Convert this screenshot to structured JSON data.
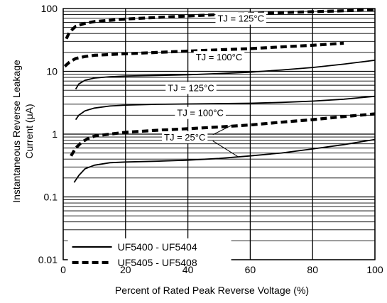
{
  "chart_data": {
    "type": "line",
    "title": "",
    "xlabel": "Percent of Rated Peak Reverse Voltage (%)",
    "ylabel": "Instantaneous Reverse Leakage Current (μA)",
    "ylabel_lines": [
      "Instantaneous Reverse Leakage",
      "Current (μA)"
    ],
    "x_scale": "linear",
    "y_scale": "log",
    "xlim": [
      0,
      100
    ],
    "ylim": [
      0.01,
      100
    ],
    "x_ticks": [
      0,
      20,
      40,
      60,
      80,
      100
    ],
    "x_tick_labels": [
      "0",
      "20",
      "40",
      "60",
      "80",
      "100"
    ],
    "y_ticks": [
      0.01,
      0.1,
      1,
      10,
      100
    ],
    "y_tick_labels": [
      "0.01",
      "0.1",
      "1",
      "10",
      "100"
    ],
    "grid": true,
    "legend": {
      "placement": "bottom-left",
      "entries": [
        {
          "label": "UF5400 - UF5404",
          "style": "solid"
        },
        {
          "label": "UF5405 - UF5408",
          "style": "dashed"
        }
      ]
    },
    "annotations": [
      {
        "text": "TJ = 125°C",
        "series": "dashed-125",
        "x": 57,
        "y": 70
      },
      {
        "text": "TJ = 100°C",
        "series": "dashed-100",
        "x": 50,
        "y": 17
      },
      {
        "text": "TJ = 125°C",
        "series": "solid-125",
        "x": 41,
        "y": 5.5
      },
      {
        "text": "TJ = 100°C",
        "series": "solid-100",
        "x": 44,
        "y": 2.2
      },
      {
        "text": "TJ = 25°C",
        "series": "solid-25",
        "x": 39,
        "y": 0.9
      }
    ],
    "series": [
      {
        "id": "dashed-125",
        "style": "dashed",
        "x": [
          1,
          2,
          4,
          7,
          10,
          15,
          20,
          30,
          40,
          50,
          60,
          70,
          80,
          90,
          100
        ],
        "y": [
          33,
          42,
          52,
          58,
          62,
          65,
          68,
          72,
          76,
          80,
          83,
          86,
          89,
          92,
          95
        ]
      },
      {
        "id": "dashed-100",
        "style": "dashed",
        "x": [
          0.5,
          2,
          4,
          7,
          10,
          15,
          20,
          30,
          40,
          50,
          60,
          70,
          80,
          90
        ],
        "y": [
          12,
          14,
          16,
          17.2,
          18,
          18.5,
          19,
          20,
          21,
          22,
          23,
          24.5,
          26,
          28
        ]
      },
      {
        "id": "solid-125",
        "style": "solid",
        "x": [
          4,
          5,
          7,
          10,
          15,
          20,
          30,
          40,
          50,
          60,
          70,
          80,
          90,
          100
        ],
        "y": [
          5.2,
          6.3,
          7.2,
          7.8,
          8.2,
          8.4,
          8.6,
          8.8,
          9.2,
          9.7,
          10.5,
          11.5,
          13,
          15
        ]
      },
      {
        "id": "solid-100",
        "style": "solid",
        "x": [
          4,
          5,
          7,
          10,
          15,
          20,
          30,
          40,
          50,
          60,
          70,
          80,
          90,
          100
        ],
        "y": [
          1.7,
          2.0,
          2.35,
          2.6,
          2.8,
          2.9,
          2.98,
          3.02,
          3.06,
          3.1,
          3.2,
          3.35,
          3.6,
          4.0
        ]
      },
      {
        "id": "dashed-25",
        "style": "dashed",
        "x": [
          2.5,
          4,
          6,
          8,
          10,
          15,
          20,
          30,
          40,
          50,
          60,
          70,
          80,
          90,
          100
        ],
        "y": [
          0.45,
          0.6,
          0.75,
          0.85,
          0.93,
          1.0,
          1.07,
          1.15,
          1.22,
          1.3,
          1.4,
          1.55,
          1.7,
          1.9,
          2.1
        ]
      },
      {
        "id": "solid-25",
        "style": "solid",
        "x": [
          3.5,
          5,
          7,
          10,
          15,
          20,
          30,
          40,
          50,
          60,
          70,
          80,
          90,
          100
        ],
        "y": [
          0.17,
          0.22,
          0.28,
          0.32,
          0.35,
          0.36,
          0.37,
          0.385,
          0.41,
          0.45,
          0.5,
          0.58,
          0.68,
          0.82
        ]
      }
    ]
  }
}
